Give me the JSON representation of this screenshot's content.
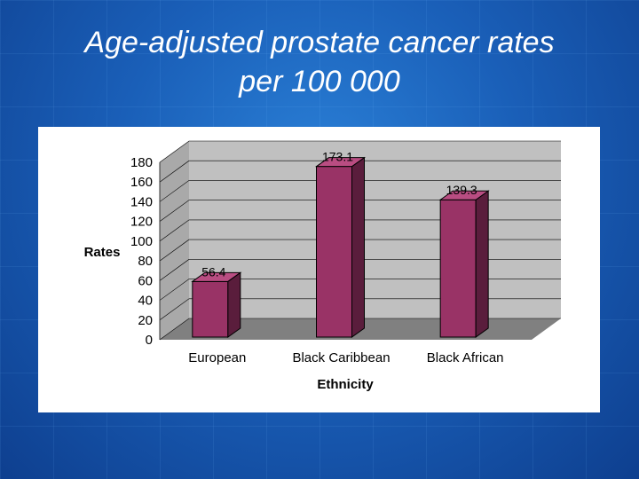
{
  "slide": {
    "title_line1": "Age-adjusted prostate cancer rates",
    "title_line2": "per 100 000"
  },
  "chart_data": {
    "type": "bar",
    "categories": [
      "European",
      "Black Caribbean",
      "Black African"
    ],
    "values": [
      56.4,
      173.1,
      139.3
    ],
    "data_labels": [
      "56.4",
      "173.1",
      "139.3"
    ],
    "title": "",
    "xlabel": "Ethnicity",
    "ylabel": "Rates",
    "ylim": [
      0,
      180
    ],
    "yticks": [
      0,
      20,
      40,
      60,
      80,
      100,
      120,
      140,
      160,
      180
    ],
    "grid": true,
    "three_d": true,
    "colors": {
      "bar_front": "#993366",
      "bar_side": "#5a1d3c",
      "bar_top": "#b94d82",
      "wall": "#c0c0c0",
      "floor": "#808080"
    }
  }
}
